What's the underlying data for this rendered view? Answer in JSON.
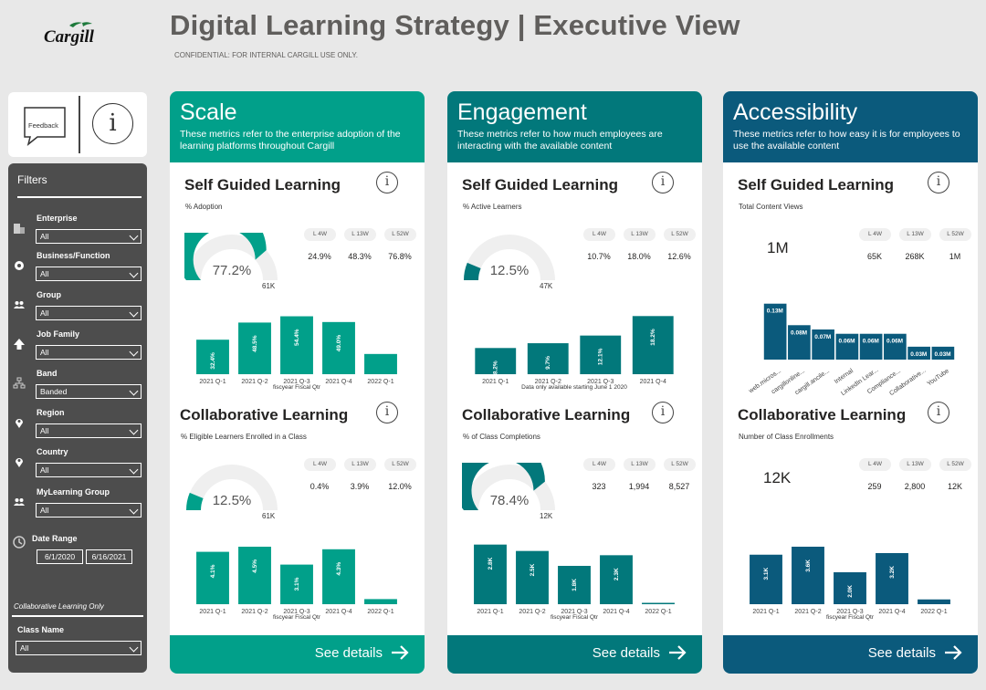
{
  "header": {
    "logo_text": "Cargill",
    "title": "Digital Learning Strategy |  Executive View",
    "subtitle": "CONFIDENTIAL: FOR INTERNAL CARGILL USE ONLY."
  },
  "feedback": {
    "label": "Feedback",
    "info_glyph": "i"
  },
  "filters": {
    "title": "Filters",
    "items": [
      {
        "label": "Enterprise",
        "value": "All",
        "icon": "building-icon"
      },
      {
        "label": "Business/Function",
        "value": "All",
        "icon": "gear-icon"
      },
      {
        "label": "Group",
        "value": "All",
        "icon": "people-icon"
      },
      {
        "label": "Job Family",
        "value": "All",
        "icon": "arrow-up-icon"
      },
      {
        "label": "Band",
        "value": "Banded",
        "icon": "hierarchy-icon"
      },
      {
        "label": "Region",
        "value": "All",
        "icon": "location-pin-icon"
      },
      {
        "label": "Country",
        "value": "All",
        "icon": "location-pin-icon"
      },
      {
        "label": "MyLearning Group",
        "value": "All",
        "icon": "people-icon"
      }
    ],
    "date_range": {
      "label": "Date Range",
      "start": "6/1/2020",
      "end": "6/16/2021"
    },
    "collab_only_label": "Collaborative Learning Only",
    "class_name": {
      "label": "Class Name",
      "value": "All"
    }
  },
  "period_labels": [
    "L 4W",
    "L 13W",
    "L 52W"
  ],
  "footer_label": "See details",
  "cards": [
    {
      "id": "scale",
      "title": "Scale",
      "description": "These metrics refer to the enterprise adoption of the learning platforms throughout Cargill",
      "color": "#01a08a",
      "self_guided": {
        "title": "Self Guided Learning",
        "subtitle": "% Adoption",
        "kpi": "77.2%",
        "gauge_fraction": 0.772,
        "gauge_max": "61K",
        "periods": [
          "24.9%",
          "48.3%",
          "76.8%"
        ],
        "chart": {
          "categories": [
            "2021 Q-1",
            "2021 Q-2",
            "2021 Q-3",
            "2021 Q-4",
            "2022 Q-1"
          ],
          "values": [
            32.4,
            48.5,
            54.4,
            49.0,
            19.0
          ],
          "labels": [
            "32.4%",
            "48.5%",
            "54.4%",
            "49.0%",
            ""
          ],
          "ylim": [
            0,
            60
          ],
          "xlabel": "fiscyear Fiscal Qtr"
        }
      },
      "collaborative": {
        "title": "Collaborative Learning",
        "subtitle": "% Eligible Learners Enrolled in a Class",
        "kpi": "12.5%",
        "gauge_fraction": 0.125,
        "gauge_max": "61K",
        "periods": [
          "0.4%",
          "3.9%",
          "12.0%"
        ],
        "chart": {
          "categories": [
            "2021 Q-1",
            "2021 Q-2",
            "2021 Q-3",
            "2021 Q-4",
            "2022 Q-1"
          ],
          "values": [
            4.1,
            4.5,
            3.1,
            4.3,
            0.4
          ],
          "labels": [
            "4.1%",
            "4.5%",
            "3.1%",
            "4.3%",
            ""
          ],
          "ylim": [
            0,
            5
          ],
          "xlabel": "fiscyear Fiscal Qtr"
        }
      }
    },
    {
      "id": "engagement",
      "title": "Engagement",
      "description": "These metrics refer to how much employees are interacting with the available content",
      "color": "#02787b",
      "self_guided": {
        "title": "Self Guided Learning",
        "subtitle": "% Active Learners",
        "kpi": "12.5%",
        "gauge_fraction": 0.125,
        "gauge_max": "47K",
        "periods": [
          "10.7%",
          "18.0%",
          "12.6%"
        ],
        "chart": {
          "categories": [
            "2021 Q-1",
            "2021 Q-2",
            "2021 Q-3",
            "2021 Q-4"
          ],
          "values": [
            8.2,
            9.7,
            12.1,
            18.2
          ],
          "labels": [
            "8.2%",
            "9.7%",
            "12.1%",
            "18.2%"
          ],
          "ylim": [
            0,
            20
          ],
          "xlabel": "Data only available starting June 1 2020"
        }
      },
      "collaborative": {
        "title": "Collaborative Learning",
        "subtitle": "% of Class Completions",
        "kpi": "78.4%",
        "gauge_fraction": 0.784,
        "gauge_max": "12K",
        "periods": [
          "323",
          "1,994",
          "8,527"
        ],
        "chart": {
          "categories": [
            "2021 Q-1",
            "2021 Q-2",
            "2021 Q-3",
            "2021 Q-4",
            "2022 Q-1"
          ],
          "values": [
            2.8,
            2.5,
            1.8,
            2.3,
            0.05
          ],
          "labels": [
            "2.8K",
            "2.5K",
            "1.8K",
            "2.3K",
            ""
          ],
          "ylim": [
            0,
            3
          ],
          "xlabel": "fiscyear Fiscal Qtr"
        }
      }
    },
    {
      "id": "accessibility",
      "title": "Accessibility",
      "description": "These metrics refer to how easy it is for employees to use the available content",
      "color": "#0b5a7c",
      "self_guided": {
        "title": "Self Guided Learning",
        "subtitle": "Total Content Views",
        "kpi": "1M",
        "periods": [
          "65K",
          "268K",
          "1M"
        ],
        "chart": {
          "categories": [
            "web.micros...",
            "cargillonline...",
            "cargill.ancile...",
            "Internal",
            "LinkedIn Lear...",
            "Compliance...",
            "Collaborative...",
            "YouTube"
          ],
          "values": [
            0.13,
            0.08,
            0.07,
            0.06,
            0.06,
            0.06,
            0.03,
            0.03
          ],
          "labels": [
            "0.13M",
            "0.08M",
            "0.07M",
            "0.06M",
            "0.06M",
            "0.06M",
            "0.03M",
            "0.03M"
          ],
          "ylim": [
            0,
            0.14
          ],
          "xlabel": ""
        }
      },
      "collaborative": {
        "title": "Collaborative Learning",
        "subtitle": "Number of Class Enrollments",
        "kpi": "12K",
        "periods": [
          "259",
          "2,800",
          "12K"
        ],
        "chart": {
          "categories": [
            "2021 Q-1",
            "2021 Q-2",
            "2021 Q-3",
            "2021 Q-4",
            "2022 Q-1"
          ],
          "values": [
            3.1,
            3.6,
            2.0,
            3.2,
            0.3
          ],
          "labels": [
            "3.1K",
            "3.6K",
            "2.0K",
            "3.2K",
            ""
          ],
          "ylim": [
            0,
            4
          ],
          "xlabel": "fiscyear Fiscal Qtr"
        }
      }
    }
  ]
}
